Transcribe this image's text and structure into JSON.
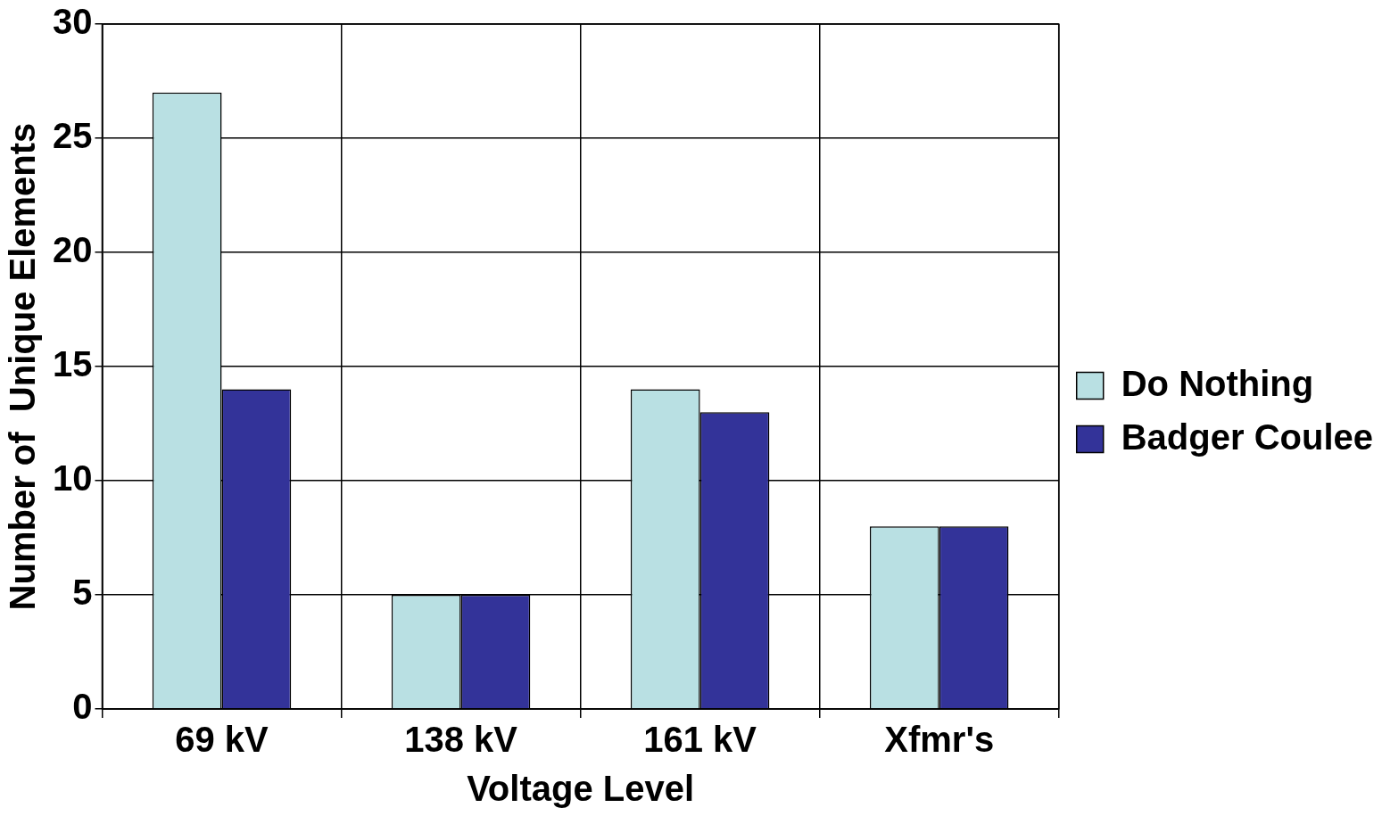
{
  "chart_data": {
    "type": "bar",
    "xlabel": "Voltage Level",
    "ylabel": "Number of  Unique Elements",
    "categories": [
      "69 kV",
      "138 kV",
      "161 kV",
      "Xfmr's"
    ],
    "series": [
      {
        "name": "Do Nothing",
        "color": "#b9e0e3",
        "values": [
          27,
          5,
          14,
          8
        ]
      },
      {
        "name": "Badger Coulee",
        "color": "#333399",
        "values": [
          14,
          5,
          13,
          8
        ]
      }
    ],
    "ylim": [
      0,
      30
    ],
    "yticks": [
      0,
      5,
      10,
      15,
      20,
      25,
      30
    ],
    "grid": true,
    "legend": "right"
  }
}
